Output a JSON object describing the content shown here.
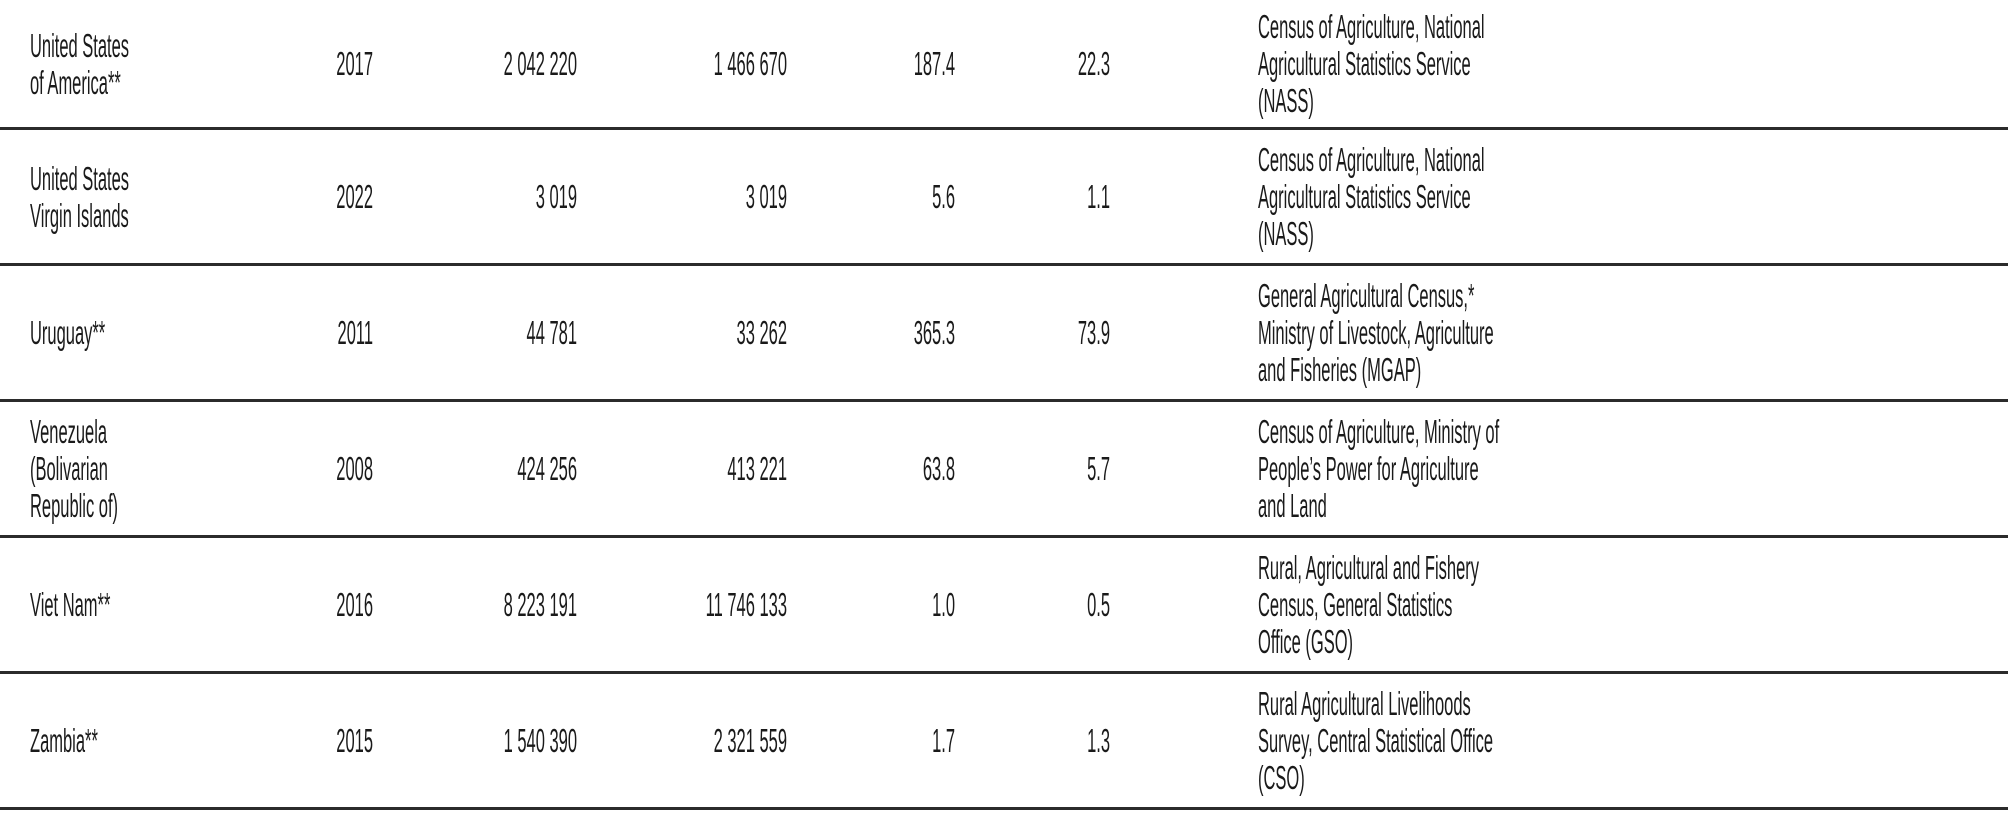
{
  "table": {
    "rows": [
      {
        "country": [
          "United States",
          "of America**"
        ],
        "year": "2017",
        "holdings": "2 042 220",
        "farms": "1 466 670",
        "avg": "187.4",
        "median": "22.3",
        "source": [
          "Census of Agriculture, National",
          "Agricultural Statistics Service",
          "(NASS)"
        ]
      },
      {
        "country": [
          "United States",
          "Virgin Islands"
        ],
        "year": "2022",
        "holdings": "3 019",
        "farms": "3 019",
        "avg": "5.6",
        "median": "1.1",
        "source": [
          "Census of Agriculture, National",
          "Agricultural Statistics Service",
          "(NASS)"
        ]
      },
      {
        "country": [
          "Uruguay**"
        ],
        "year": "2011",
        "holdings": "44 781",
        "farms": "33 262",
        "avg": "365.3",
        "median": "73.9",
        "source": [
          "General Agricultural Census,*",
          "Ministry of Livestock, Agriculture",
          "and Fisheries (MGAP)"
        ]
      },
      {
        "country": [
          "Venezuela",
          "(Bolivarian",
          "Republic of)"
        ],
        "year": "2008",
        "holdings": "424 256",
        "farms": "413 221",
        "avg": "63.8",
        "median": "5.7",
        "source": [
          "Census of Agriculture, Ministry of",
          "People’s Power for Agriculture",
          "and Land"
        ]
      },
      {
        "country": [
          "Viet Nam**"
        ],
        "year": "2016",
        "holdings": "8 223 191",
        "farms": "11 746 133",
        "avg": "1.0",
        "median": "0.5",
        "source": [
          "Rural, Agricultural and Fishery",
          "Census, General Statistics",
          "Office (GSO)"
        ]
      },
      {
        "country": [
          "Zambia**"
        ],
        "year": "2015",
        "holdings": "1 540 390",
        "farms": "2 321 559",
        "avg": "1.7",
        "median": "1.3",
        "source": [
          "Rural Agricultural Livelihoods",
          "Survey, Central Statistical Office",
          "(CSO)"
        ]
      }
    ]
  }
}
